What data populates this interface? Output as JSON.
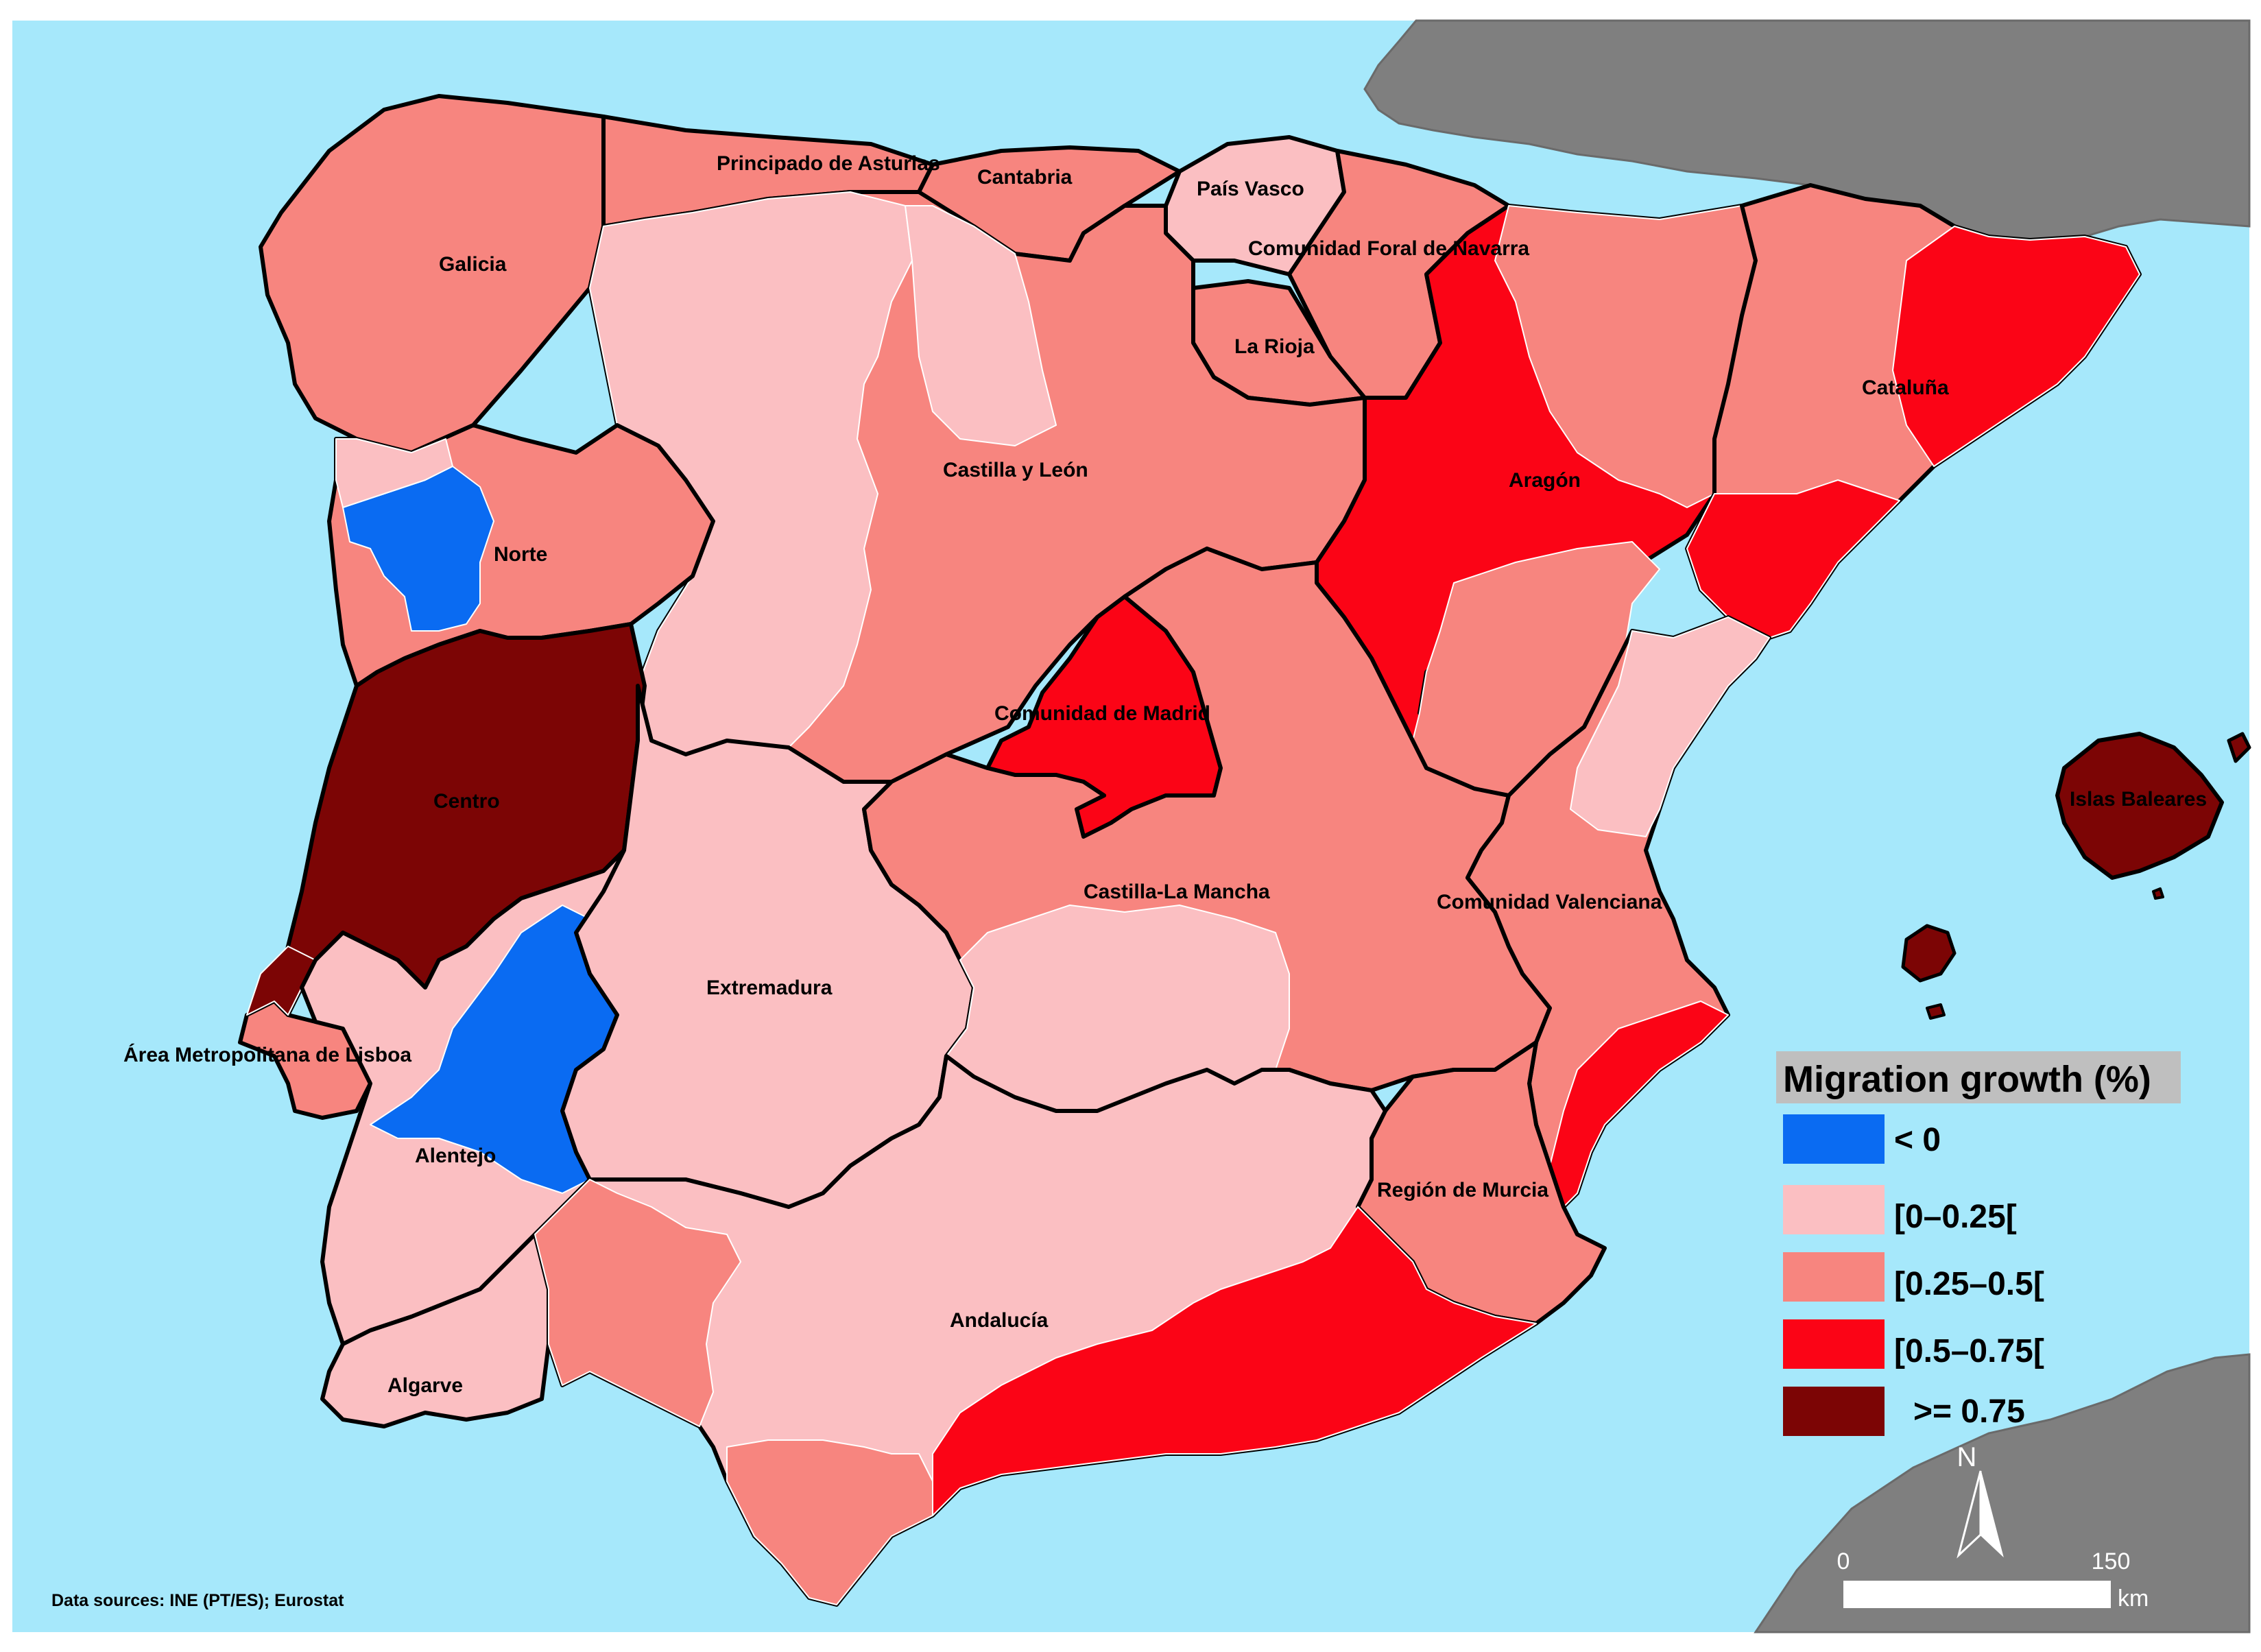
{
  "legend": {
    "title": "Migration growth (%)",
    "classes": [
      {
        "label": "< 0",
        "color": "#0a6bf2"
      },
      {
        "label": "[0–0.25[",
        "color": "#fbbfc2"
      },
      {
        "label": "[0.25–0.5[",
        "color": "#f7857f"
      },
      {
        "label": "[0.5–0.75[",
        "color": "#fb0416"
      },
      {
        "label": ">= 0.75",
        "color": "#7c0505"
      }
    ]
  },
  "colors": {
    "sea": "#a6e8fb",
    "land_other": "#7f7f7f",
    "region_border": "#000000",
    "subregion_border": "#ffffff",
    "legend_title_bg": "#bfbfbf"
  },
  "regions": [
    {
      "name": "Galicia",
      "class": "[0.25–0.5["
    },
    {
      "name": "Principado de Asturias",
      "class": "[0.25–0.5["
    },
    {
      "name": "Cantabria",
      "class": "[0.25–0.5["
    },
    {
      "name": "País Vasco",
      "class": "[0–0.25["
    },
    {
      "name": "Comunidad Foral de Navarra",
      "class": "[0.25–0.5["
    },
    {
      "name": "La Rioja",
      "class": "[0.25–0.5["
    },
    {
      "name": "Aragón",
      "class": "[0.5–0.75["
    },
    {
      "name": "Cataluña",
      "class": "[0.25–0.5["
    },
    {
      "name": "Castilla y León",
      "class": "[0.25–0.5["
    },
    {
      "name": "Norte",
      "class": "[0.25–0.5["
    },
    {
      "name": "Comunidad de Madrid",
      "class": "[0.5–0.75["
    },
    {
      "name": "Centro",
      "class": ">= 0.75"
    },
    {
      "name": "Illes Balears",
      "class": ">= 0.75"
    },
    {
      "name": "Castilla-La Mancha",
      "class": "[0.25–0.5["
    },
    {
      "name": "Comunidad Valenciana",
      "class": "[0.25–0.5["
    },
    {
      "name": "Extremadura",
      "class": "[0–0.25["
    },
    {
      "name": "Área Metropolitana de Lisboa",
      "class": ">= 0.75"
    },
    {
      "name": "Alentejo",
      "class": "< 0"
    },
    {
      "name": "Región de Murcia",
      "class": "[0.25–0.5["
    },
    {
      "name": "Andalucía",
      "class": "[0–0.25["
    },
    {
      "name": "Algarve",
      "class": "[0–0.25["
    }
  ],
  "labels": {
    "galicia": "Galicia",
    "asturias": "Principado de Asturias",
    "cantabria": "Cantabria",
    "pais_vasco": "País Vasco",
    "navarra": "Comunidad Foral de Navarra",
    "la_rioja": "La Rioja",
    "aragon": "Aragón",
    "cataluna": "Cataluña",
    "castilla_leon": "Castilla y León",
    "norte": "Norte",
    "madrid": "Comunidad de Madrid",
    "centro": "Centro",
    "baleares": "Islas Baleares",
    "castilla_mancha": "Castilla-La Mancha",
    "valenciana": "Comunidad Valenciana",
    "extremadura": "Extremadura",
    "lisboa": "Área Metropolitana de Lisboa",
    "alentejo": "Alentejo",
    "murcia": "Región de Murcia",
    "andalucia": "Andalucía",
    "algarve": "Algarve"
  },
  "scale_bar": {
    "start": "0",
    "end": "150",
    "unit": "km"
  },
  "north_arrow": {
    "label": "N",
    "icon": "north-arrow-icon"
  },
  "source_note": "Data sources: INE (PT/ES); Eurostat"
}
